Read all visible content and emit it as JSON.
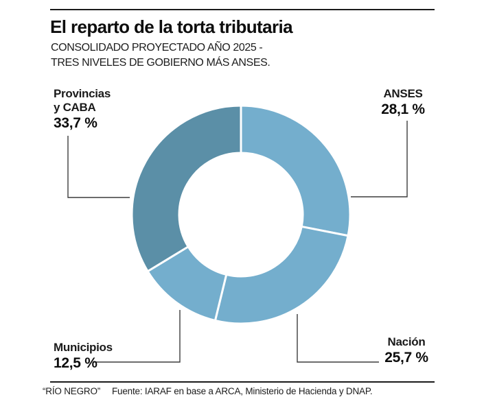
{
  "header": {
    "title": "El reparto de la torta tributaria",
    "subtitle_line1": "CONSOLIDADO PROYECTADO AÑO 2025 -",
    "subtitle_line2": "TRES NIVELES DE GOBIERNO MÁS ANSES."
  },
  "chart_data": {
    "type": "pie",
    "subtype": "donut",
    "title": "El reparto de la torta tributaria",
    "categories": [
      "ANSES",
      "Nación",
      "Municipios",
      "Provincias y CABA"
    ],
    "values": [
      28.1,
      25.7,
      12.5,
      33.7
    ],
    "value_labels": [
      "28,1 %",
      "25,7 %",
      "12,5 %",
      "33,7 %"
    ],
    "unit": "%",
    "slice_ids": [
      "anses",
      "nacion",
      "municipios",
      "provincias-caba"
    ],
    "colors": [
      "#74aecd",
      "#74aecd",
      "#74aecd",
      "#5b8fa7"
    ],
    "start_angle_deg": 0,
    "direction": "clockwise",
    "inner_radius_ratio": 0.566,
    "separator_color": "#ffffff",
    "legend_position": "callout-labels"
  },
  "labels": {
    "provincias": {
      "name_line1": "Provincias",
      "name_line2": "y CABA",
      "value": "33,7 %"
    },
    "anses": {
      "name": "ANSES",
      "value": "28,1 %"
    },
    "municipios": {
      "name": "Municipios",
      "value": "12,5 %"
    },
    "nacion": {
      "name": "Nación",
      "value": "25,7 %"
    }
  },
  "footer": {
    "credit": "“RÍO NEGRO”",
    "source": "Fuente: IARAF en base a ARCA, Ministerio de Hacienda y DNAP."
  }
}
